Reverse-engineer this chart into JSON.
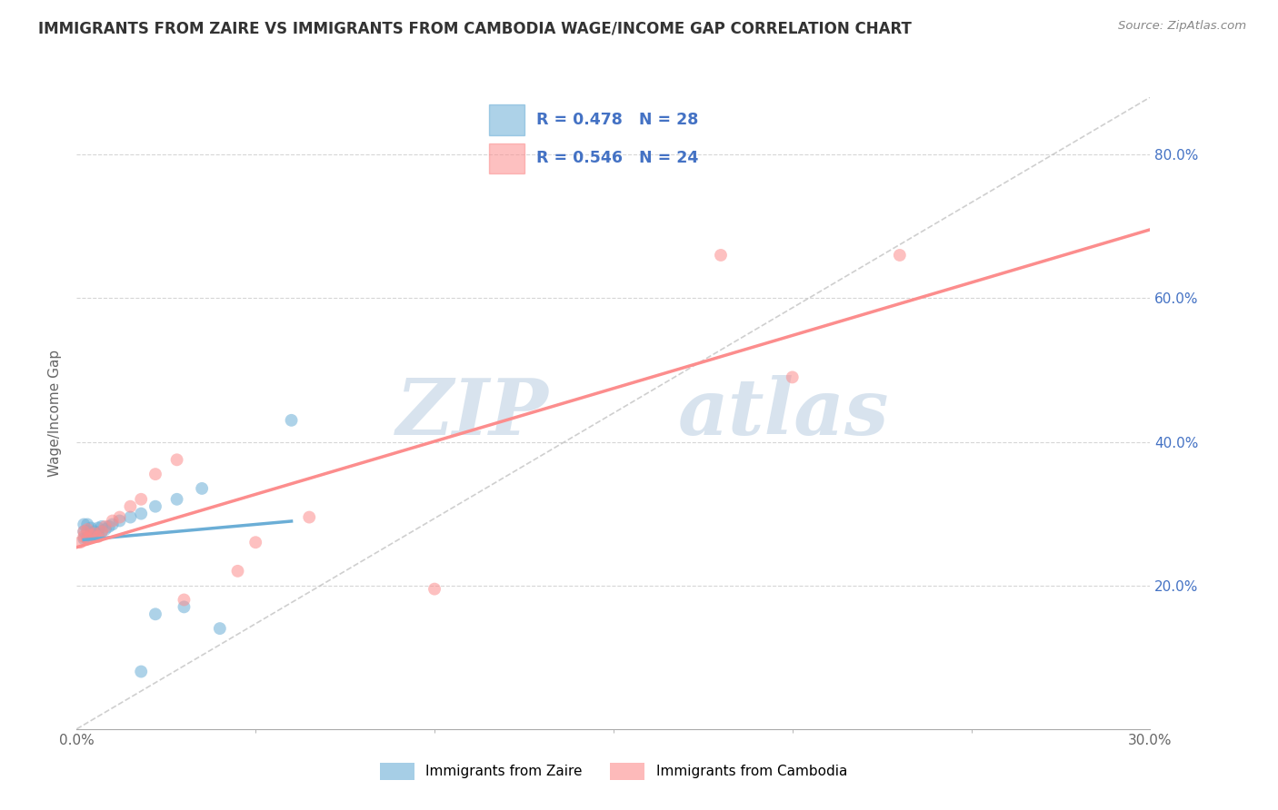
{
  "title": "IMMIGRANTS FROM ZAIRE VS IMMIGRANTS FROM CAMBODIA WAGE/INCOME GAP CORRELATION CHART",
  "source": "Source: ZipAtlas.com",
  "ylabel": "Wage/Income Gap",
  "xlim": [
    0.0,
    0.3
  ],
  "ylim": [
    0.0,
    0.88
  ],
  "zaire_color": "#6baed6",
  "cambodia_color": "#fc8d8d",
  "zaire_R": 0.478,
  "zaire_N": 28,
  "cambodia_R": 0.546,
  "cambodia_N": 24,
  "zaire_points": [
    [
      0.002,
      0.265
    ],
    [
      0.002,
      0.275
    ],
    [
      0.002,
      0.285
    ],
    [
      0.003,
      0.265
    ],
    [
      0.003,
      0.275
    ],
    [
      0.003,
      0.285
    ],
    [
      0.004,
      0.27
    ],
    [
      0.004,
      0.28
    ],
    [
      0.005,
      0.268
    ],
    [
      0.005,
      0.275
    ],
    [
      0.006,
      0.272
    ],
    [
      0.006,
      0.28
    ],
    [
      0.007,
      0.275
    ],
    [
      0.007,
      0.282
    ],
    [
      0.008,
      0.278
    ],
    [
      0.009,
      0.282
    ],
    [
      0.01,
      0.285
    ],
    [
      0.012,
      0.29
    ],
    [
      0.015,
      0.295
    ],
    [
      0.018,
      0.3
    ],
    [
      0.022,
      0.31
    ],
    [
      0.028,
      0.32
    ],
    [
      0.035,
      0.335
    ],
    [
      0.06,
      0.43
    ],
    [
      0.022,
      0.16
    ],
    [
      0.03,
      0.17
    ],
    [
      0.04,
      0.14
    ],
    [
      0.018,
      0.08
    ]
  ],
  "cambodia_points": [
    [
      0.001,
      0.26
    ],
    [
      0.002,
      0.268
    ],
    [
      0.002,
      0.275
    ],
    [
      0.003,
      0.265
    ],
    [
      0.003,
      0.278
    ],
    [
      0.004,
      0.27
    ],
    [
      0.005,
      0.272
    ],
    [
      0.006,
      0.268
    ],
    [
      0.007,
      0.275
    ],
    [
      0.008,
      0.282
    ],
    [
      0.01,
      0.29
    ],
    [
      0.012,
      0.295
    ],
    [
      0.015,
      0.31
    ],
    [
      0.018,
      0.32
    ],
    [
      0.022,
      0.355
    ],
    [
      0.028,
      0.375
    ],
    [
      0.03,
      0.18
    ],
    [
      0.045,
      0.22
    ],
    [
      0.05,
      0.26
    ],
    [
      0.065,
      0.295
    ],
    [
      0.1,
      0.195
    ],
    [
      0.18,
      0.66
    ],
    [
      0.2,
      0.49
    ],
    [
      0.23,
      0.66
    ]
  ],
  "watermark_line1": "ZIP",
  "watermark_line2": "atlas",
  "watermark_color": "#c8d8e8",
  "background_color": "#ffffff",
  "grid_color": "#cccccc",
  "diagonal_color": "#bbbbbb",
  "legend_R_color": "#4472c4",
  "right_tick_color": "#4472c4"
}
